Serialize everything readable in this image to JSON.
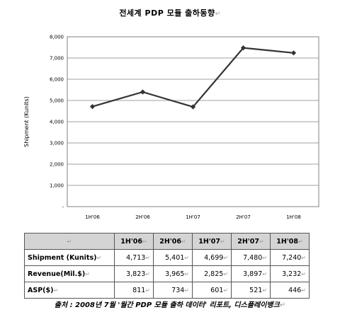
{
  "title": "전세계 PDP 모듈 출하동향",
  "chart_data": {
    "type": "line",
    "categories": [
      "1H'06",
      "2H'06",
      "1H'07",
      "2H'07",
      "1H'08"
    ],
    "series": [
      {
        "values": [
          4713,
          5401,
          4699,
          7480,
          7240
        ]
      }
    ],
    "ylabel": "Shipment (Kunits)",
    "ylim": [
      0,
      8000
    ],
    "yticks": [
      "8,000",
      "7,000",
      "6,000",
      "5,000",
      "4,000",
      "3,000",
      "2,000",
      "1,000",
      "-"
    ],
    "grid": true,
    "legend": "none",
    "line_color": "#333333"
  },
  "table": {
    "headers": [
      "1H'06",
      "2H'06",
      "1H'07",
      "2H'07",
      "1H'08"
    ],
    "rows": [
      {
        "label": "Shipment (Kunits)",
        "values": [
          "4,713",
          "5,401",
          "4,699",
          "7,480",
          "7,240"
        ]
      },
      {
        "label": "Revenue(Mil.$)",
        "values": [
          "3,823",
          "3,965",
          "2,825",
          "3,897",
          "3,232"
        ]
      },
      {
        "label": "ASP($)",
        "values": [
          "811",
          "734",
          "601",
          "521",
          "446"
        ]
      }
    ]
  },
  "source": "출처 : 2008년 7월 '월간 PDP 모듈 출하 데이터' 리포트, 디스플레이뱅크"
}
